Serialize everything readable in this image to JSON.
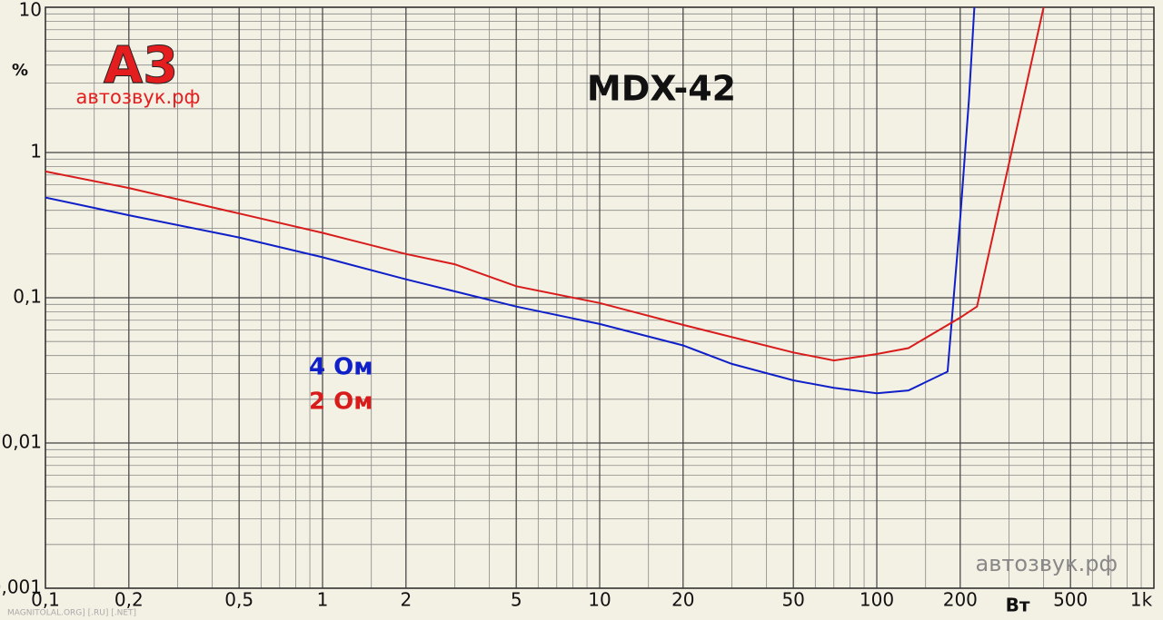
{
  "chart_data": {
    "type": "line",
    "title": "MDX-42",
    "x_label": "Вт",
    "y_label": "%",
    "x_scale": "log",
    "y_scale": "log",
    "grid": true,
    "xlim": [
      0.1,
      1000
    ],
    "ylim": [
      0.001,
      10
    ],
    "xticks": [
      {
        "value": 0.1,
        "label": "0,1"
      },
      {
        "value": 0.2,
        "label": "0,2"
      },
      {
        "value": 0.5,
        "label": "0,5"
      },
      1,
      2,
      5,
      10,
      20,
      50,
      100,
      200,
      500,
      {
        "value": 1000,
        "label": "1k"
      }
    ],
    "yticks": [
      {
        "value": 0.001,
        "label": "0,001"
      },
      {
        "value": 0.01,
        "label": "0,01"
      },
      {
        "value": 0.1,
        "label": "0,1"
      },
      1,
      10
    ],
    "series": [
      {
        "name": "4 Ом",
        "color": "#1020c8",
        "x": [
          0.1,
          0.2,
          0.5,
          1,
          2,
          5,
          10,
          20,
          30,
          50,
          70,
          100,
          130,
          180,
          200,
          215,
          225
        ],
        "values": [
          0.49,
          0.37,
          0.26,
          0.19,
          0.134,
          0.087,
          0.066,
          0.047,
          0.035,
          0.027,
          0.024,
          0.022,
          0.023,
          0.031,
          0.35,
          2.3,
          10
        ]
      },
      {
        "name": "2 Ом",
        "color": "#d81c1c",
        "x": [
          0.1,
          0.2,
          0.5,
          1,
          2,
          3,
          5,
          10,
          20,
          50,
          70,
          100,
          130,
          200,
          230,
          300,
          400
        ],
        "values": [
          0.74,
          0.57,
          0.38,
          0.28,
          0.2,
          0.17,
          0.12,
          0.092,
          0.065,
          0.042,
          0.037,
          0.041,
          0.045,
          0.073,
          0.087,
          0.84,
          10
        ]
      }
    ]
  },
  "logo": {
    "mark": "А3",
    "site": "автозвук.рф"
  },
  "watermark": "автозвук.рф",
  "footer": "MAGNITOLAL.ORG] [.RU] [.NET]"
}
